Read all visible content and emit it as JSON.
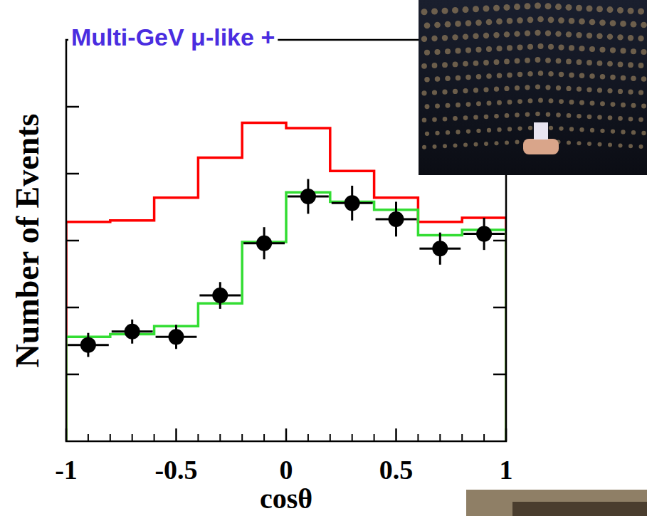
{
  "chart_data": {
    "type": "histogram",
    "title": "Multi-GeV μ-like +",
    "x_label": "cosθ",
    "y_label": "Number of Events",
    "bins": [
      -1,
      -0.8,
      -0.6,
      -0.4,
      -0.2,
      0,
      0.2,
      0.4,
      0.6,
      0.8,
      1
    ],
    "xlim": [
      -1,
      1
    ],
    "xticks": [
      -1,
      -0.5,
      0,
      0.5,
      1
    ],
    "ylim": [
      0,
      300
    ],
    "yticks": [
      50,
      100,
      150,
      200,
      250
    ],
    "tick_labels": "x",
    "series": [
      {
        "type": "step",
        "color": "#ff0000",
        "values": [
          164,
          165,
          182,
          212,
          238,
          234,
          202,
          182,
          164,
          167
        ]
      },
      {
        "type": "step",
        "color": "#33dd33",
        "values": [
          78,
          80,
          86,
          103,
          149,
          186,
          179,
          173,
          154,
          158
        ]
      },
      {
        "type": "scatter",
        "color": "#000000",
        "marker": "circle",
        "values": [
          72,
          82,
          78,
          109,
          148,
          183,
          178,
          166,
          144,
          155
        ],
        "errors": [
          9,
          9,
          9,
          10,
          12,
          13,
          13,
          13,
          12,
          12
        ]
      }
    ]
  }
}
